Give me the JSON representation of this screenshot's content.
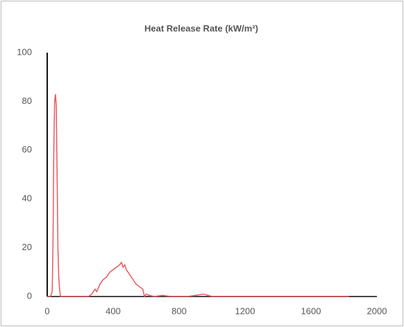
{
  "chart_data": {
    "type": "line",
    "title": "Heat Release Rate (kW/m²)",
    "x": [
      0,
      20,
      30,
      35,
      40,
      45,
      50,
      55,
      60,
      65,
      70,
      75,
      80,
      90,
      250,
      270,
      290,
      300,
      320,
      340,
      360,
      380,
      400,
      420,
      440,
      450,
      460,
      470,
      480,
      500,
      520,
      540,
      560,
      580,
      590,
      600,
      620,
      650,
      700,
      750,
      800,
      850,
      900,
      950,
      1000,
      1200,
      1400,
      1600,
      1830
    ],
    "series": [
      {
        "name": "Heat Release Rate",
        "color": "#e8595c",
        "values": [
          0,
          0,
          2,
          20,
          60,
          80,
          83,
          78,
          50,
          20,
          8,
          3,
          0,
          0,
          0,
          1,
          3,
          2,
          5,
          7,
          8,
          10,
          11,
          12,
          13,
          14,
          12,
          13,
          11,
          9,
          7,
          5,
          4,
          3,
          0,
          1,
          0.5,
          0,
          0.5,
          0,
          0,
          0,
          0.5,
          1,
          0,
          0,
          0,
          0,
          0
        ]
      }
    ],
    "xlim": [
      0,
      2000
    ],
    "xticks": [
      0,
      400,
      800,
      1200,
      1600,
      2000
    ],
    "ylim": [
      0,
      100
    ],
    "yticks": [
      0,
      20,
      40,
      60,
      80,
      100
    ]
  }
}
